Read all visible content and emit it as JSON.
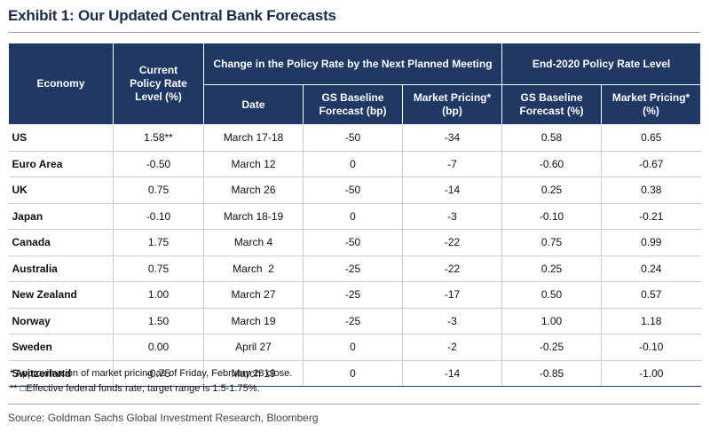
{
  "title": "Exhibit 1: Our Updated Central Bank Forecasts",
  "headers": {
    "economy": "Economy",
    "current_rate": "Current Policy Rate Level (%)",
    "change_group": "Change in the Policy Rate by the Next Planned Meeting",
    "end2020_group": "End-2020 Policy Rate Level",
    "date": "Date",
    "gs_baseline_bp": "GS Baseline Forecast (bp)",
    "market_pricing_bp": "Market Pricing* (bp)",
    "gs_baseline_pct": "GS Baseline Forecast (%)",
    "market_pricing_pct": "Market Pricing* (%)"
  },
  "rows": [
    {
      "economy": "US",
      "current": "1.58**",
      "date": "March 17-18",
      "gs_bp": "-50",
      "mkt_bp": "-34",
      "gs_pct": "0.58",
      "mkt_pct": "0.65"
    },
    {
      "economy": "Euro Area",
      "current": "-0.50",
      "date": "March 12",
      "gs_bp": "0",
      "mkt_bp": "-7",
      "gs_pct": "-0.60",
      "mkt_pct": "-0.67"
    },
    {
      "economy": "UK",
      "current": "0.75",
      "date": "March 26",
      "gs_bp": "-50",
      "mkt_bp": "-14",
      "gs_pct": "0.25",
      "mkt_pct": "0.38"
    },
    {
      "economy": "Japan",
      "current": "-0.10",
      "date": "March 18-19",
      "gs_bp": "0",
      "mkt_bp": "-3",
      "gs_pct": "-0.10",
      "mkt_pct": "-0.21"
    },
    {
      "economy": "Canada",
      "current": "1.75",
      "date": "March 4",
      "gs_bp": "-50",
      "mkt_bp": "-22",
      "gs_pct": "0.75",
      "mkt_pct": "0.99"
    },
    {
      "economy": "Australia",
      "current": "0.75",
      "date": "March  2",
      "gs_bp": "-25",
      "mkt_bp": "-22",
      "gs_pct": "0.25",
      "mkt_pct": "0.24"
    },
    {
      "economy": "New Zealand",
      "current": "1.00",
      "date": "March 27",
      "gs_bp": "-25",
      "mkt_bp": "-17",
      "gs_pct": "0.50",
      "mkt_pct": "0.57"
    },
    {
      "economy": "Norway",
      "current": "1.50",
      "date": "March 19",
      "gs_bp": "-25",
      "mkt_bp": "-3",
      "gs_pct": "1.00",
      "mkt_pct": "1.18"
    },
    {
      "economy": "Sweden",
      "current": "0.00",
      "date": "April 27",
      "gs_bp": "0",
      "mkt_bp": "-2",
      "gs_pct": "-0.25",
      "mkt_pct": "-0.10"
    },
    {
      "economy": "Switzerland",
      "current": "-0.75",
      "date": "March 19",
      "gs_bp": "0",
      "mkt_bp": "-14",
      "gs_pct": "-0.85",
      "mkt_pct": "-1.00"
    }
  ],
  "notes": [
    "* Approximation of market pricing as of Friday, February 28 close.",
    "** □Effective federal funds rate; target range is 1.5-1.75%."
  ],
  "source": "Source: Goldman Sachs Global Investment Research, Bloomberg",
  "colors": {
    "header_bg": "#1f3864",
    "title": "#1a2b4a"
  }
}
